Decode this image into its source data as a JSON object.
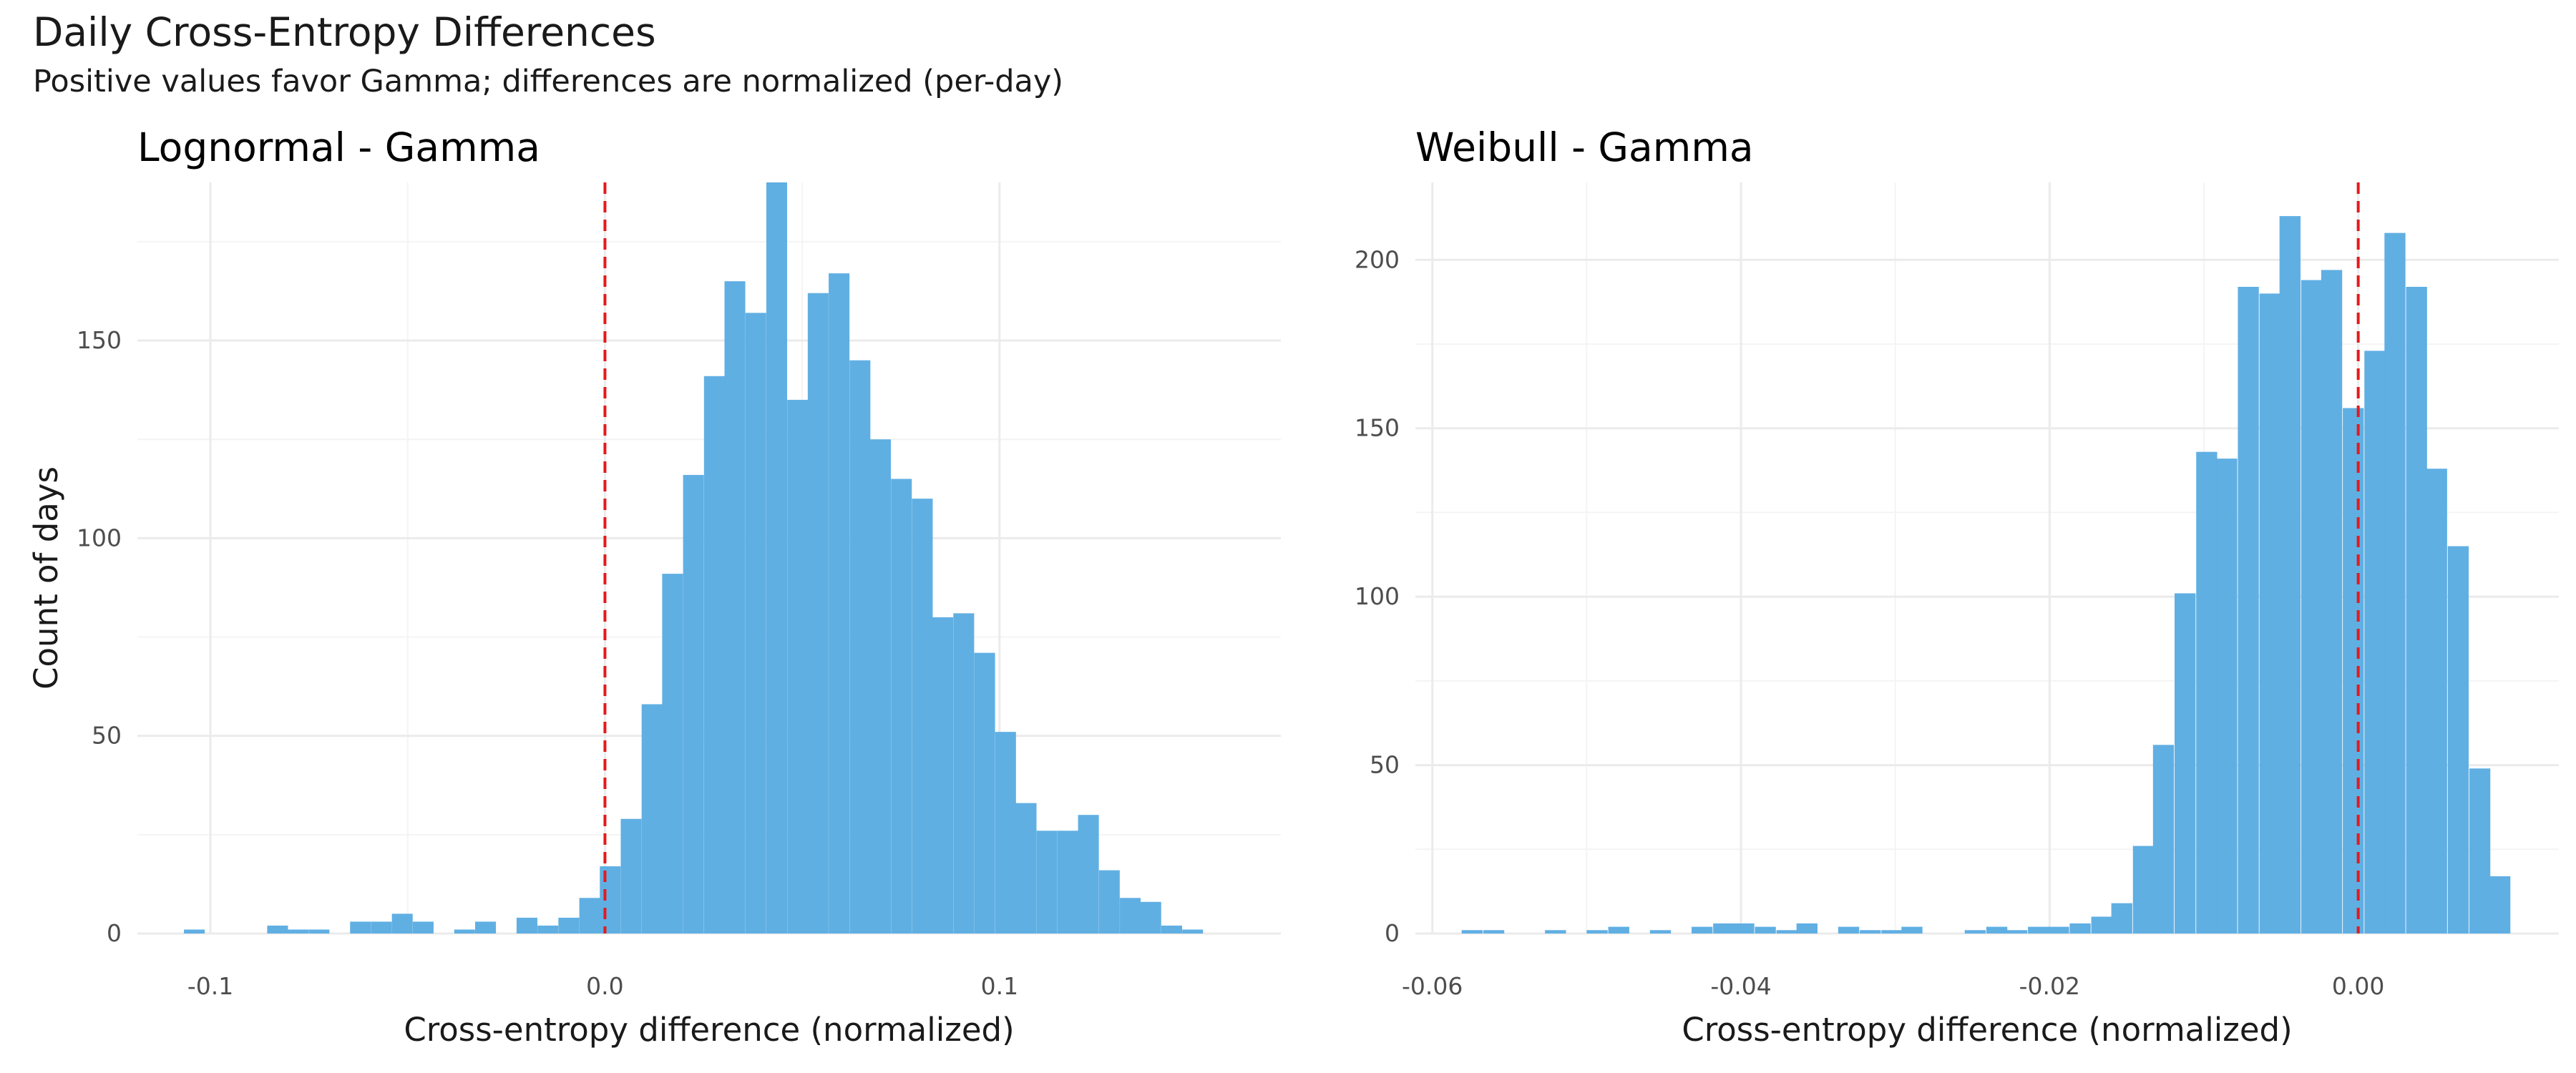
{
  "title": "Daily Cross-Entropy Differences",
  "subtitle": "Positive values favor Gamma; differences are normalized (per-day)",
  "colors": {
    "bar": "#5DADE2",
    "reference_line": "#E41A1C",
    "grid_major": "#EBEBEB",
    "grid_minor": "#F4F4F4",
    "tick_text": "#4D4D4D"
  },
  "chart_data": [
    {
      "type": "bar",
      "title": "Lognormal - Gamma",
      "xlabel": "Cross-entropy difference (normalized)",
      "ylabel": "Count of days",
      "xlim": [
        -0.1185,
        0.1713
      ],
      "ylim": [
        0,
        190
      ],
      "x_ticks": [
        -0.1,
        0.0,
        0.1
      ],
      "x_tick_labels": [
        "-0.1",
        "0.0",
        "0.1"
      ],
      "y_ticks": [
        0,
        50,
        100,
        150
      ],
      "y_tick_labels": [
        "0",
        "50",
        "100",
        "150"
      ],
      "reference_line_x": 0.0,
      "bin_width": 0.00527,
      "bin_starts": [
        -0.1067,
        -0.0962,
        -0.0856,
        -0.0804,
        -0.0751,
        -0.0646,
        -0.0593,
        -0.054,
        -0.0487,
        -0.0382,
        -0.0329,
        -0.0224,
        -0.0171,
        -0.0118,
        -0.0065,
        -0.0013,
        0.004,
        0.0093,
        0.0145,
        0.0198,
        0.0251,
        0.0303,
        0.0356,
        0.0409,
        0.0462,
        0.0514,
        0.0567,
        0.062,
        0.0672,
        0.0725,
        0.0778,
        0.083,
        0.0883,
        0.0936,
        0.0989,
        0.1041,
        0.1094,
        0.1147,
        0.1199,
        0.1252,
        0.1305,
        0.1357,
        0.141,
        0.1463,
        0.1516
      ],
      "counts": [
        1,
        0,
        2,
        1,
        1,
        3,
        3,
        5,
        3,
        1,
        3,
        4,
        2,
        4,
        9,
        17,
        29,
        58,
        91,
        116,
        141,
        165,
        157,
        190,
        135,
        162,
        167,
        145,
        125,
        115,
        110,
        80,
        81,
        71,
        51,
        33,
        26,
        26,
        30,
        16,
        9,
        8,
        2,
        1,
        0
      ]
    },
    {
      "type": "bar",
      "title": "Weibull - Gamma",
      "xlabel": "Cross-entropy difference (normalized)",
      "ylabel": "",
      "xlim": [
        -0.0611,
        0.013
      ],
      "ylim": [
        0,
        223
      ],
      "x_ticks": [
        -0.06,
        -0.04,
        -0.02,
        0.0
      ],
      "x_tick_labels": [
        "-0.06",
        "-0.04",
        "-0.02",
        "0.00"
      ],
      "y_ticks": [
        0,
        50,
        100,
        150,
        200
      ],
      "y_tick_labels": [
        "0",
        "50",
        "100",
        "150",
        "200"
      ],
      "reference_line_x": 0.0,
      "bin_width": 0.00136,
      "bin_starts": [
        -0.0581,
        -0.0567,
        -0.0527,
        -0.05,
        -0.0486,
        -0.0459,
        -0.0432,
        -0.0418,
        -0.0405,
        -0.0391,
        -0.0377,
        -0.0364,
        -0.0337,
        -0.0323,
        -0.0309,
        -0.0296,
        -0.0255,
        -0.0241,
        -0.0228,
        -0.0214,
        -0.0201,
        -0.0187,
        -0.0173,
        -0.016,
        -0.0146,
        -0.0133,
        -0.0119,
        -0.0105,
        -0.0092,
        -0.0078,
        -0.0064,
        -0.0051,
        -0.0037,
        -0.0024,
        -0.001,
        0.0004,
        0.0017,
        0.0031,
        0.0044,
        0.0058,
        0.0072,
        0.0085
      ],
      "counts": [
        1,
        1,
        1,
        1,
        2,
        1,
        2,
        3,
        3,
        2,
        1,
        3,
        2,
        1,
        1,
        2,
        1,
        2,
        1,
        2,
        2,
        3,
        5,
        9,
        26,
        56,
        101,
        143,
        141,
        192,
        190,
        213,
        194,
        197,
        156,
        173,
        208,
        192,
        138,
        115,
        49,
        17
      ]
    }
  ]
}
